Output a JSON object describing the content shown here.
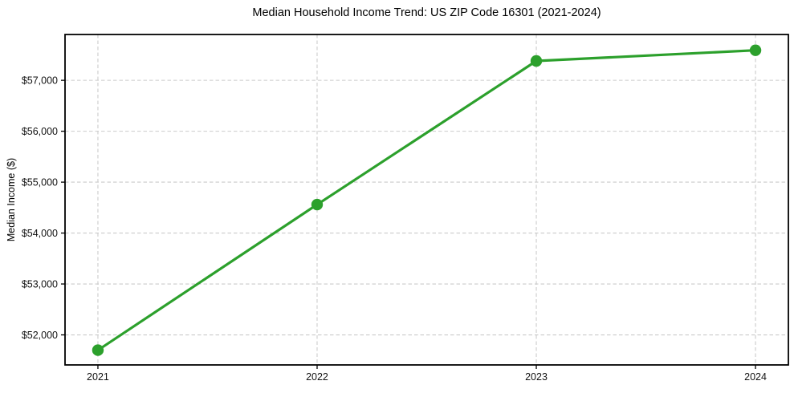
{
  "chart_data": {
    "type": "line",
    "title": "Median Household Income Trend: US ZIP Code 16301 (2021-2024)",
    "xlabel": "",
    "ylabel": "Median Income ($)",
    "x": [
      2021,
      2022,
      2023,
      2024
    ],
    "x_tick_labels": [
      "2021",
      "2022",
      "2023",
      "2024"
    ],
    "values": [
      51700,
      54560,
      57380,
      57590
    ],
    "y_ticks": [
      52000,
      53000,
      54000,
      55000,
      56000,
      57000
    ],
    "y_tick_labels": [
      "$52,000",
      "$53,000",
      "$54,000",
      "$55,000",
      "$56,000",
      "$57,000"
    ],
    "xlim": [
      2020.85,
      2024.15
    ],
    "ylim": [
      51410,
      57900
    ],
    "grid": true,
    "grid_style": "dashed",
    "legend": "none",
    "colors": {
      "line": "#2ca02c",
      "marker": "#2ca02c",
      "grid": "#cbcbcb",
      "axis": "#000000",
      "tick_text": "#111111",
      "background": "#ffffff"
    }
  }
}
